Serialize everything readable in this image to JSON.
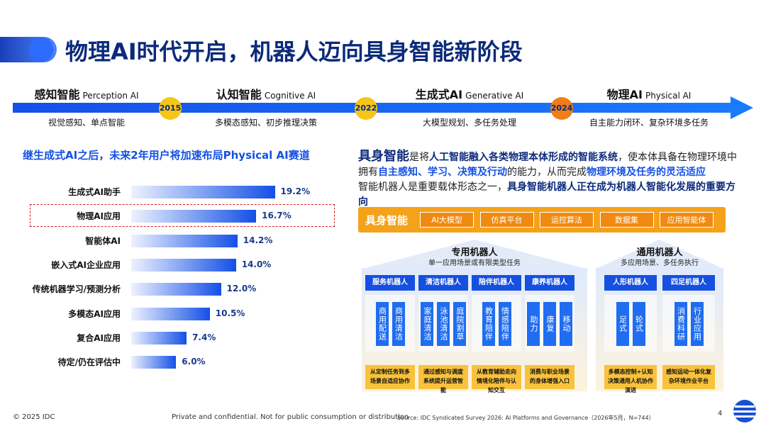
{
  "title": "物理AI时代开启，机器人迈向具身智能新阶段",
  "timeline": {
    "stages": [
      {
        "title": "感知智能",
        "en": "Perception AI",
        "desc": "视觉感知、单点智能"
      },
      {
        "title": "认知智能",
        "en": "Cognitive AI",
        "desc": "多模态感知、初步推理决策"
      },
      {
        "title": "生成式AI",
        "en": "Generative AI",
        "desc": "大模型规划、多任务处理"
      },
      {
        "title": "物理AI",
        "en": "Physical AI",
        "desc": "自主能力闭环、复杂环境多任务"
      }
    ],
    "years": [
      "2015",
      "2022",
      "2024"
    ]
  },
  "chart_data": {
    "type": "bar",
    "orientation": "horizontal",
    "title": "继生成式AI之后，未来2年用户将加速布局Physical AI赛道",
    "categories": [
      "生成式AI助手",
      "物理AI应用",
      "智能体AI",
      "嵌入式AI企业应用",
      "传统机器学习/预测分析",
      "多模态AI应用",
      "复合AI应用",
      "待定/仍在评估中"
    ],
    "values": [
      19.2,
      16.7,
      14.2,
      14.0,
      12.0,
      10.5,
      7.4,
      6.0
    ],
    "value_labels": [
      "19.2%",
      "16.7%",
      "14.2%",
      "14.0%",
      "12.0%",
      "10.5%",
      "7.4%",
      "6.0%"
    ],
    "color": "#1450e6",
    "highlight_index": 1
  },
  "intro": {
    "line1": [
      "具身智能",
      "是将",
      "人工智能融入各类物理本体形成的智能系统",
      "，使本体具备在物理环境中拥有",
      "自主感知、学习、决策及行动",
      "的能力，从而完成",
      "物理环境及任务的灵活适应"
    ],
    "line2": [
      "智能机器人是重要载体形态之一，",
      "具身智能机器人正在成为机器人智能化发展的重要方向"
    ]
  },
  "diagram": {
    "core": {
      "label": "具身智能",
      "items": [
        "AI大模型",
        "仿真平台",
        "运控算法",
        "数据集",
        "应用智能体"
      ]
    },
    "groups": [
      {
        "title": "专用机器人",
        "subtitle": "单一应用场景或有限类型任务",
        "columns": [
          {
            "name": "服务机器人",
            "items": [
              "商用配送",
              "商用清洁"
            ],
            "note": "从定制任务到多场景自适应协作"
          },
          {
            "name": "清洁机器人",
            "items": [
              "家庭清洁",
              "泳池清洁",
              "庭院割草"
            ],
            "note": "通过感知与调度系统提升运营智能"
          },
          {
            "name": "陪伴机器人",
            "items": [
              "教育陪伴",
              "情感陪伴"
            ],
            "note": "从教育辅助走向情境化陪伴与认知交互"
          },
          {
            "name": "康养机器人",
            "items": [
              "助力",
              "康复",
              "移动"
            ],
            "note": "消费与职业场景的身体增强入口"
          }
        ]
      },
      {
        "title": "通用机器人",
        "subtitle": "多应用场景、多任务执行",
        "columns": [
          {
            "name": "人形机器人",
            "items": [
              "足式",
              "轮式"
            ],
            "note": "多模态控制+认知决策通用人机协作演进"
          },
          {
            "name": "四足机器人",
            "items": [
              "消费科研",
              "行业应用"
            ],
            "note": "感知运动一体化复杂环境作业平台"
          }
        ]
      }
    ]
  },
  "footer": {
    "copyright": "© 2025 IDC",
    "confidential": "Private and confidential. Not for public consumption or distribution",
    "source": "Source: IDC Syndicated Survey 2026: AI Platforms and Governance（2026年5月，N=744）",
    "page": "4"
  }
}
